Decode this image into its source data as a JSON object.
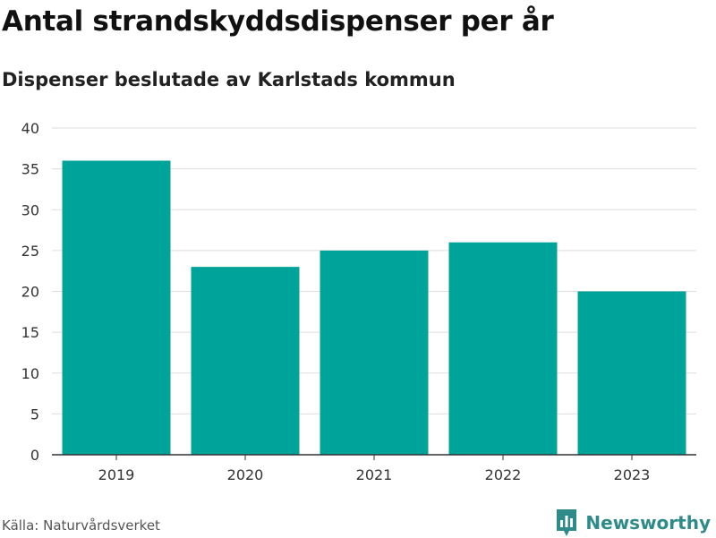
{
  "header": {
    "title": "Antal strandskyddsdispenser per år",
    "subtitle": "Dispenser beslutade av Karlstads kommun"
  },
  "footer": {
    "source": "Källa: Naturvårdsverket",
    "brand": "Newsworthy"
  },
  "colors": {
    "bar": "#00a39a",
    "grid": "#dddddd",
    "axis": "#333333",
    "brand": "#2e8b8a"
  },
  "chart_data": {
    "type": "bar",
    "categories": [
      "2019",
      "2020",
      "2021",
      "2022",
      "2023"
    ],
    "values": [
      36,
      23,
      25,
      26,
      20
    ],
    "title": "Antal strandskyddsdispenser per år",
    "subtitle": "Dispenser beslutade av Karlstads kommun",
    "xlabel": "",
    "ylabel": "",
    "ylim": [
      0,
      40
    ],
    "yticks": [
      0,
      5,
      10,
      15,
      20,
      25,
      30,
      35,
      40
    ],
    "grid": true,
    "legend": "none"
  }
}
